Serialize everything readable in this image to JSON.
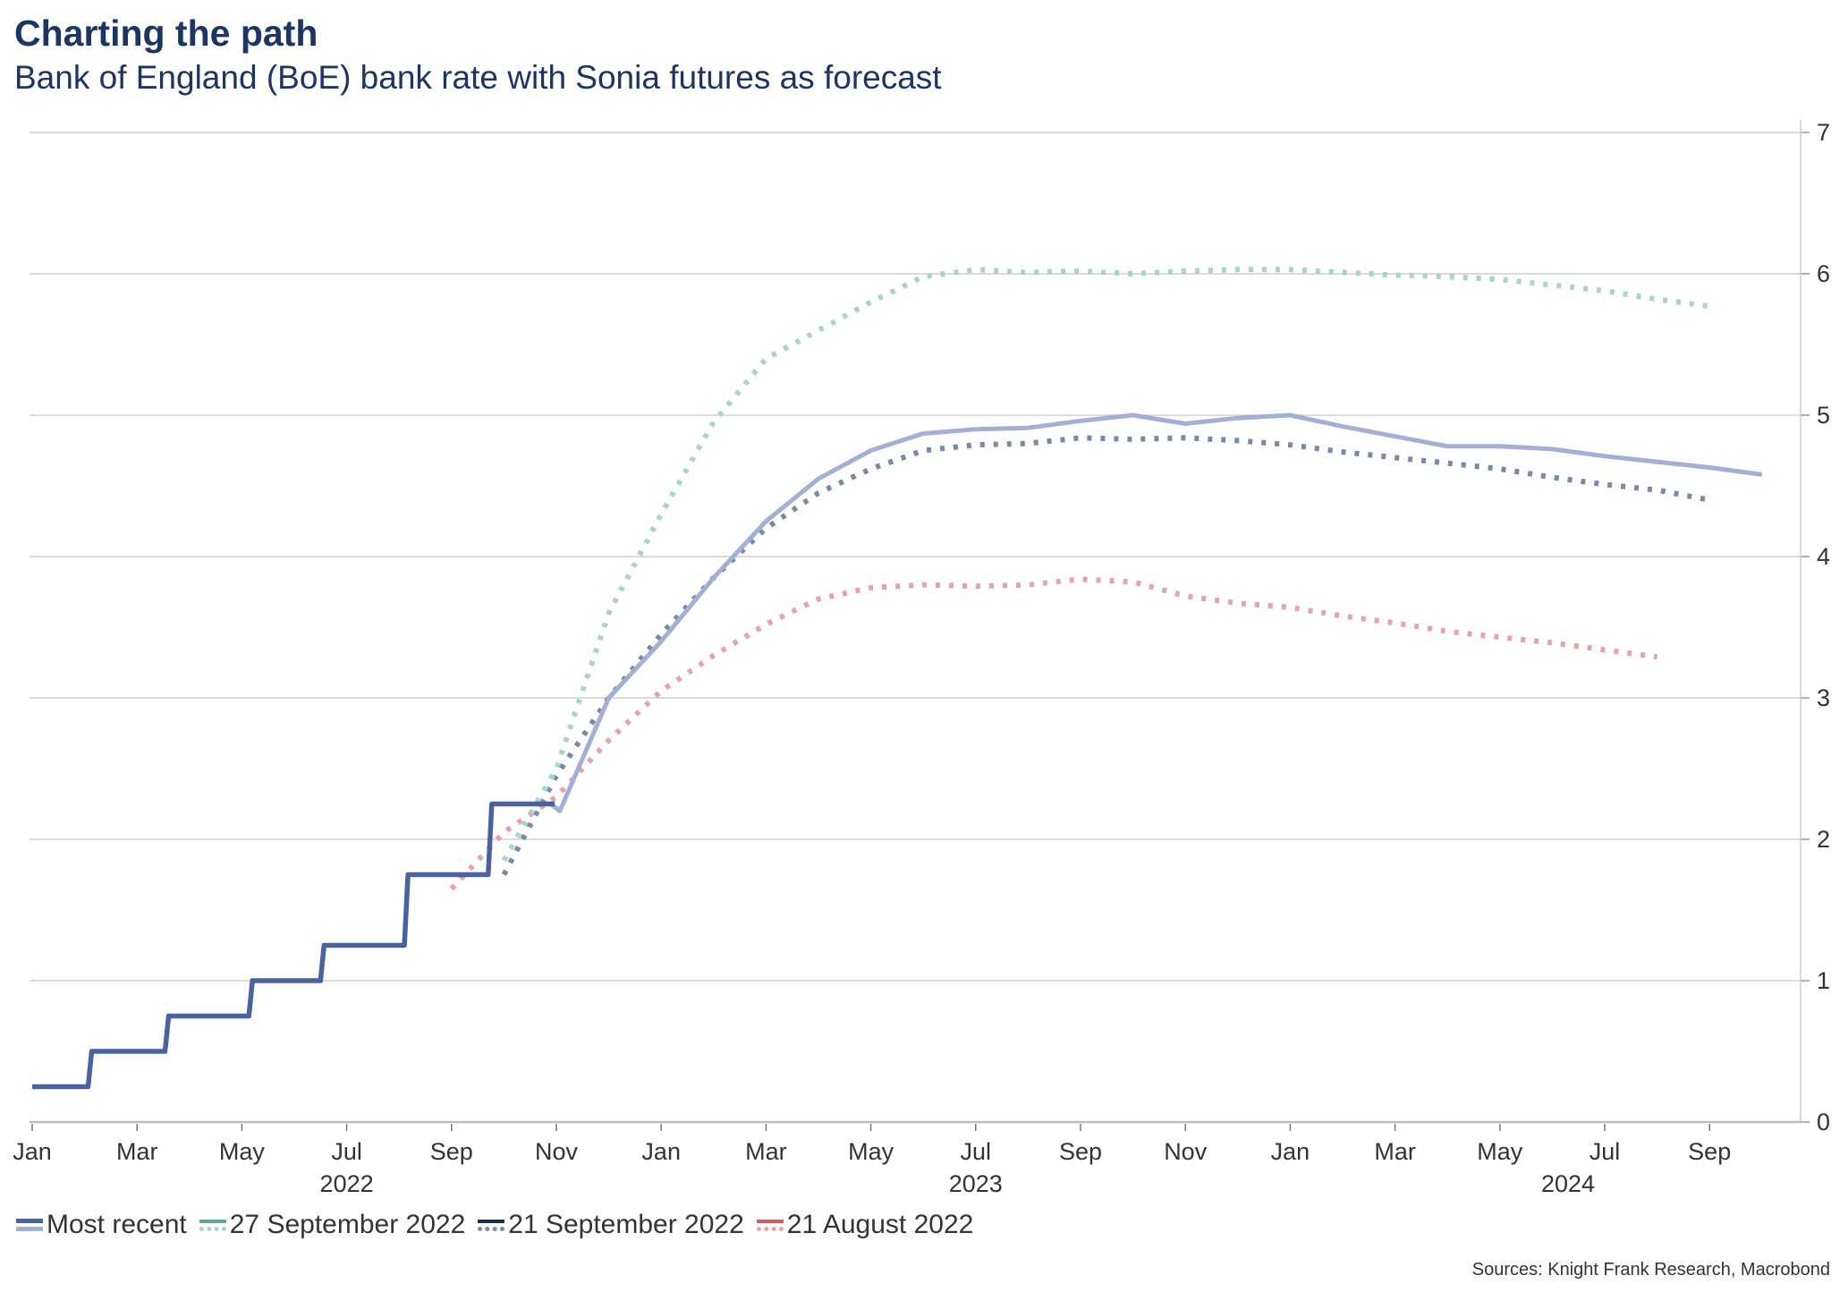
{
  "title": "Charting the path",
  "subtitle": "Bank of England (BoE) bank rate with Sonia futures as forecast",
  "sources": "Sources: Knight Frank Research, Macrobond",
  "chart_data": {
    "type": "line",
    "title": "Charting the path",
    "subtitle": "Bank of England (BoE) bank rate with Sonia futures as forecast",
    "xlabel": "",
    "ylabel": "",
    "ylim": [
      0,
      7
    ],
    "y_ticks": [
      "0",
      "1",
      "2",
      "3",
      "4",
      "5",
      "6",
      "7"
    ],
    "y_axis_side": "right",
    "xlim": [
      "2022-01-01",
      "2024-10-20"
    ],
    "x_ticks": [
      {
        "date": "2022-01-01",
        "label": "Jan"
      },
      {
        "date": "2022-03-01",
        "label": "Mar"
      },
      {
        "date": "2022-05-01",
        "label": "May"
      },
      {
        "date": "2022-07-01",
        "label": "Jul"
      },
      {
        "date": "2022-09-01",
        "label": "Sep"
      },
      {
        "date": "2022-11-01",
        "label": "Nov"
      },
      {
        "date": "2023-01-01",
        "label": "Jan"
      },
      {
        "date": "2023-03-01",
        "label": "Mar"
      },
      {
        "date": "2023-05-01",
        "label": "May"
      },
      {
        "date": "2023-07-01",
        "label": "Jul"
      },
      {
        "date": "2023-09-01",
        "label": "Sep"
      },
      {
        "date": "2023-11-01",
        "label": "Nov"
      },
      {
        "date": "2024-01-01",
        "label": "Jan"
      },
      {
        "date": "2024-03-01",
        "label": "Mar"
      },
      {
        "date": "2024-05-01",
        "label": "May"
      },
      {
        "date": "2024-07-01",
        "label": "Jul"
      },
      {
        "date": "2024-09-01",
        "label": "Sep"
      }
    ],
    "year_labels": [
      "2022",
      "2023",
      "2024"
    ],
    "grid": "horizontal",
    "legend_position": "bottom-left",
    "series": [
      {
        "name": "Most recent",
        "color": "#4a62a0",
        "forecast_color": "#a3b0d6",
        "style": "solid",
        "bank_rate_steps": [
          {
            "date": "2022-01-01",
            "value": 0.25
          },
          {
            "date": "2022-02-03",
            "value": 0.5
          },
          {
            "date": "2022-03-17",
            "value": 0.75
          },
          {
            "date": "2022-05-05",
            "value": 1.0
          },
          {
            "date": "2022-06-16",
            "value": 1.25
          },
          {
            "date": "2022-08-04",
            "value": 1.75
          },
          {
            "date": "2022-09-22",
            "value": 2.25
          },
          {
            "date": "2022-10-28",
            "value": 2.25
          }
        ],
        "forecast": [
          {
            "date": "2022-10-28",
            "value": 2.25
          },
          {
            "date": "2022-11-03",
            "value": 2.2
          },
          {
            "date": "2022-12-01",
            "value": 3.0
          },
          {
            "date": "2023-01-01",
            "value": 3.4
          },
          {
            "date": "2023-02-01",
            "value": 3.85
          },
          {
            "date": "2023-03-01",
            "value": 4.25
          },
          {
            "date": "2023-04-01",
            "value": 4.55
          },
          {
            "date": "2023-05-01",
            "value": 4.75
          },
          {
            "date": "2023-06-01",
            "value": 4.87
          },
          {
            "date": "2023-07-01",
            "value": 4.9
          },
          {
            "date": "2023-08-01",
            "value": 4.91
          },
          {
            "date": "2023-09-01",
            "value": 4.96
          },
          {
            "date": "2023-10-01",
            "value": 5.0
          },
          {
            "date": "2023-11-01",
            "value": 4.94
          },
          {
            "date": "2023-12-01",
            "value": 4.98
          },
          {
            "date": "2024-01-01",
            "value": 5.0
          },
          {
            "date": "2024-02-01",
            "value": 4.92
          },
          {
            "date": "2024-03-01",
            "value": 4.85
          },
          {
            "date": "2024-04-01",
            "value": 4.78
          },
          {
            "date": "2024-05-01",
            "value": 4.78
          },
          {
            "date": "2024-06-01",
            "value": 4.76
          },
          {
            "date": "2024-07-01",
            "value": 4.71
          },
          {
            "date": "2024-08-01",
            "value": 4.67
          },
          {
            "date": "2024-09-01",
            "value": 4.63
          },
          {
            "date": "2024-10-01",
            "value": 4.58
          }
        ]
      },
      {
        "name": "27 September 2022",
        "color": "#a8d5c8",
        "legend_color": "#5aab96",
        "style": "dotted",
        "points": [
          {
            "date": "2022-10-01",
            "value": 1.85
          },
          {
            "date": "2022-11-01",
            "value": 2.5
          },
          {
            "date": "2022-12-01",
            "value": 3.6
          },
          {
            "date": "2023-01-01",
            "value": 4.3
          },
          {
            "date": "2023-02-01",
            "value": 4.95
          },
          {
            "date": "2023-03-01",
            "value": 5.4
          },
          {
            "date": "2023-04-01",
            "value": 5.6
          },
          {
            "date": "2023-05-01",
            "value": 5.8
          },
          {
            "date": "2023-06-01",
            "value": 5.98
          },
          {
            "date": "2023-07-01",
            "value": 6.03
          },
          {
            "date": "2023-08-01",
            "value": 6.01
          },
          {
            "date": "2023-09-01",
            "value": 6.02
          },
          {
            "date": "2023-10-01",
            "value": 6.0
          },
          {
            "date": "2023-11-01",
            "value": 6.02
          },
          {
            "date": "2023-12-01",
            "value": 6.03
          },
          {
            "date": "2024-01-01",
            "value": 6.03
          },
          {
            "date": "2024-02-01",
            "value": 6.01
          },
          {
            "date": "2024-03-01",
            "value": 5.99
          },
          {
            "date": "2024-04-01",
            "value": 5.98
          },
          {
            "date": "2024-05-01",
            "value": 5.96
          },
          {
            "date": "2024-06-01",
            "value": 5.92
          },
          {
            "date": "2024-07-01",
            "value": 5.88
          },
          {
            "date": "2024-08-01",
            "value": 5.82
          },
          {
            "date": "2024-09-01",
            "value": 5.77
          }
        ]
      },
      {
        "name": "21 September 2022",
        "color": "#7a89a6",
        "legend_color": "#1a2e55",
        "style": "dotted",
        "points": [
          {
            "date": "2022-10-01",
            "value": 1.75
          },
          {
            "date": "2022-11-01",
            "value": 2.45
          },
          {
            "date": "2022-12-01",
            "value": 3.0
          },
          {
            "date": "2023-01-01",
            "value": 3.45
          },
          {
            "date": "2023-02-01",
            "value": 3.85
          },
          {
            "date": "2023-03-01",
            "value": 4.2
          },
          {
            "date": "2023-04-01",
            "value": 4.45
          },
          {
            "date": "2023-05-01",
            "value": 4.62
          },
          {
            "date": "2023-06-01",
            "value": 4.75
          },
          {
            "date": "2023-07-01",
            "value": 4.79
          },
          {
            "date": "2023-08-01",
            "value": 4.8
          },
          {
            "date": "2023-09-01",
            "value": 4.84
          },
          {
            "date": "2023-10-01",
            "value": 4.83
          },
          {
            "date": "2023-11-01",
            "value": 4.84
          },
          {
            "date": "2023-12-01",
            "value": 4.82
          },
          {
            "date": "2024-01-01",
            "value": 4.79
          },
          {
            "date": "2024-02-01",
            "value": 4.74
          },
          {
            "date": "2024-03-01",
            "value": 4.7
          },
          {
            "date": "2024-04-01",
            "value": 4.66
          },
          {
            "date": "2024-05-01",
            "value": 4.62
          },
          {
            "date": "2024-06-01",
            "value": 4.56
          },
          {
            "date": "2024-07-01",
            "value": 4.51
          },
          {
            "date": "2024-08-01",
            "value": 4.47
          },
          {
            "date": "2024-09-01",
            "value": 4.4
          }
        ]
      },
      {
        "name": "21 August 2022",
        "color": "#e8a3a8",
        "legend_color": "#d55a64",
        "style": "dotted",
        "points": [
          {
            "date": "2022-09-01",
            "value": 1.65
          },
          {
            "date": "2022-10-01",
            "value": 2.05
          },
          {
            "date": "2022-11-01",
            "value": 2.3
          },
          {
            "date": "2022-12-01",
            "value": 2.7
          },
          {
            "date": "2023-01-01",
            "value": 3.05
          },
          {
            "date": "2023-02-01",
            "value": 3.3
          },
          {
            "date": "2023-03-01",
            "value": 3.52
          },
          {
            "date": "2023-04-01",
            "value": 3.7
          },
          {
            "date": "2023-05-01",
            "value": 3.78
          },
          {
            "date": "2023-06-01",
            "value": 3.8
          },
          {
            "date": "2023-07-01",
            "value": 3.79
          },
          {
            "date": "2023-08-01",
            "value": 3.8
          },
          {
            "date": "2023-09-01",
            "value": 3.84
          },
          {
            "date": "2023-10-01",
            "value": 3.82
          },
          {
            "date": "2023-11-01",
            "value": 3.72
          },
          {
            "date": "2023-12-01",
            "value": 3.67
          },
          {
            "date": "2024-01-01",
            "value": 3.64
          },
          {
            "date": "2024-02-01",
            "value": 3.58
          },
          {
            "date": "2024-03-01",
            "value": 3.53
          },
          {
            "date": "2024-04-01",
            "value": 3.47
          },
          {
            "date": "2024-05-01",
            "value": 3.43
          },
          {
            "date": "2024-06-01",
            "value": 3.39
          },
          {
            "date": "2024-07-01",
            "value": 3.34
          },
          {
            "date": "2024-08-01",
            "value": 3.29
          }
        ]
      }
    ]
  }
}
